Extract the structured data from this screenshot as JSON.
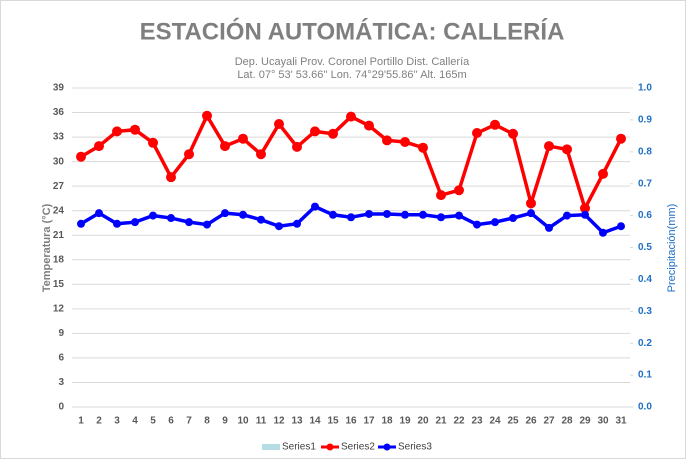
{
  "chart_data": {
    "type": "line",
    "title": "ESTACIÓN AUTOMÁTICA: CALLERÍA",
    "subtitle": [
      "Dep. Ucayali Prov. Coronel Portillo Dist. Callería",
      "Lat. 07° 53' 53.66'' Lon. 74°29'55.86'' Alt. 165m"
    ],
    "y_label": "Temperatura (°C)",
    "y2_label": "Precipitación(mm)",
    "categories": [
      1,
      2,
      3,
      4,
      5,
      6,
      7,
      8,
      9,
      10,
      11,
      12,
      13,
      14,
      15,
      16,
      17,
      18,
      19,
      20,
      21,
      22,
      23,
      24,
      25,
      26,
      27,
      28,
      29,
      30,
      31
    ],
    "series": [
      {
        "name": "Series1",
        "color": "#b4dde5",
        "axis": "y2",
        "kind": "bar",
        "values": [
          0,
          0,
          0,
          0,
          0,
          0,
          0,
          0,
          0,
          0,
          0,
          0,
          0,
          0,
          0,
          0,
          0,
          0,
          0,
          0,
          0,
          0,
          0,
          0,
          0,
          0,
          0,
          0,
          0,
          0,
          0
        ]
      },
      {
        "name": "Series2",
        "color": "#ff0000",
        "kind": "line",
        "values": [
          30.6,
          31.9,
          33.7,
          33.9,
          32.3,
          28.1,
          30.9,
          35.6,
          31.9,
          32.8,
          30.9,
          34.6,
          31.8,
          33.7,
          33.4,
          35.5,
          34.4,
          32.6,
          32.4,
          31.7,
          25.9,
          26.5,
          33.5,
          34.5,
          33.4,
          24.9,
          31.9,
          31.5,
          24.3,
          28.5,
          32.8
        ]
      },
      {
        "name": "Series3",
        "color": "#0000ff",
        "kind": "line",
        "values": [
          22.4,
          23.7,
          22.4,
          22.6,
          23.4,
          23.1,
          22.6,
          22.3,
          23.7,
          23.5,
          22.9,
          22.1,
          22.4,
          24.5,
          23.5,
          23.2,
          23.6,
          23.6,
          23.5,
          23.5,
          23.2,
          23.4,
          22.3,
          22.6,
          23.1,
          23.7,
          21.9,
          23.4,
          23.5,
          21.3,
          22.1
        ]
      }
    ],
    "ylim": [
      0,
      39
    ],
    "yticks": [
      0,
      3,
      6,
      9,
      12,
      15,
      18,
      21,
      24,
      27,
      30,
      33,
      36,
      39
    ],
    "y2lim": [
      0,
      1
    ],
    "y2ticks": [
      {
        "value": 0,
        "label": "0.0"
      },
      0.1,
      0.2,
      0.3,
      0.4,
      0.5,
      0.6,
      0.7,
      0.8,
      0.9,
      {
        "value": 1,
        "label": "1.0"
      }
    ],
    "grid": true,
    "legend": "bottom"
  }
}
